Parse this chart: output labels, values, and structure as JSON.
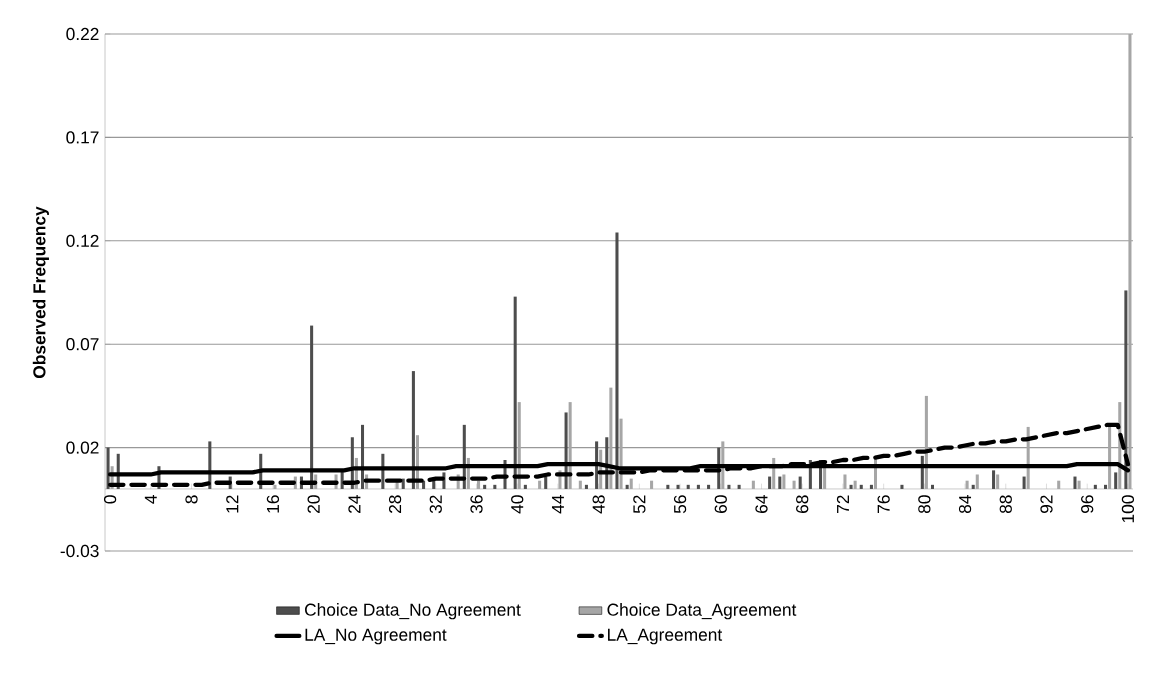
{
  "chart_data": {
    "type": "bar",
    "ylabel": "Observed Frequency",
    "categories": [
      "0",
      null,
      null,
      null,
      "4",
      null,
      null,
      null,
      "8",
      null,
      null,
      null,
      "12",
      null,
      null,
      null,
      "16",
      null,
      null,
      null,
      "20",
      null,
      null,
      null,
      "24",
      null,
      null,
      null,
      "28",
      null,
      null,
      null,
      "32",
      null,
      null,
      null,
      "36",
      null,
      null,
      null,
      "40",
      null,
      null,
      null,
      "44",
      null,
      null,
      null,
      "48",
      null,
      null,
      null,
      "52",
      null,
      null,
      null,
      "56",
      null,
      null,
      null,
      "60",
      null,
      null,
      null,
      "64",
      null,
      null,
      null,
      "68",
      null,
      null,
      null,
      "72",
      null,
      null,
      null,
      "76",
      null,
      null,
      null,
      "80",
      null,
      null,
      null,
      "84",
      null,
      null,
      null,
      "88",
      null,
      null,
      null,
      "92",
      null,
      null,
      null,
      "96",
      null,
      null,
      null,
      "100"
    ],
    "series": [
      {
        "name": "Choice Data_No Agreement",
        "color": "#4d4d4d",
        "values": [
          0.02,
          0.017,
          0,
          0,
          0,
          0.011,
          0,
          0,
          0,
          0,
          0.023,
          0,
          0.006,
          0,
          0,
          0.017,
          0,
          0,
          0,
          0.006,
          0.079,
          0,
          0,
          0.009,
          0.025,
          0.031,
          0,
          0.017,
          0,
          0.005,
          0.057,
          0.004,
          0.004,
          0.008,
          0,
          0.031,
          0,
          0.002,
          0.002,
          0.014,
          0.093,
          0.002,
          0,
          0.006,
          0,
          0.037,
          0,
          0.002,
          0.023,
          0.025,
          0.124,
          0.002,
          0,
          0,
          0,
          0.002,
          0.002,
          0.002,
          0.002,
          0.002,
          0.02,
          0.002,
          0.002,
          0,
          0,
          0.006,
          0.006,
          0,
          0.006,
          0.014,
          0.014,
          0,
          0,
          0.002,
          0.002,
          0.002,
          0,
          0,
          0.002,
          0,
          0.016,
          0.002,
          0,
          0,
          0,
          0.002,
          0,
          0.009,
          0,
          0,
          0.006,
          0,
          0,
          0,
          0,
          0.006,
          0,
          0.002,
          0.002,
          0.008,
          0.096
        ]
      },
      {
        "name": "Choice Data_Agreement",
        "color": "#a6a6a6",
        "values": [
          0.011,
          0,
          null,
          0,
          0,
          0,
          0,
          0,
          0,
          0,
          0,
          0,
          0,
          0,
          0,
          0,
          0.002,
          0,
          0.006,
          0,
          0.007,
          0,
          0.007,
          0,
          0.015,
          0.007,
          0,
          0,
          0.004,
          0,
          0.026,
          0,
          0,
          0,
          0.007,
          0.015,
          0.004,
          0,
          0,
          0,
          0.042,
          0,
          0.004,
          0,
          0.009,
          0.042,
          0.004,
          0,
          0.019,
          0.049,
          0.034,
          0.005,
          0,
          0.004,
          0,
          0,
          0,
          0,
          0,
          0,
          0.023,
          0,
          0,
          0.004,
          0,
          0.015,
          0.007,
          0.004,
          0,
          0,
          0.011,
          0,
          0.007,
          0.004,
          0,
          0.015,
          0,
          0,
          0,
          0,
          0.045,
          0,
          0,
          0,
          0.004,
          0.007,
          0,
          0.007,
          0,
          0,
          0.03,
          0,
          0,
          0.004,
          0,
          0.004,
          0,
          0,
          0.03,
          0.042,
          0.22
        ]
      },
      {
        "name": "LA_No Agreement",
        "type": "line",
        "line_style": "solid",
        "color": "#000000",
        "values": [
          0.007,
          0.007,
          0.007,
          0.007,
          0.007,
          0.008,
          0.008,
          0.008,
          0.008,
          0.008,
          0.008,
          0.008,
          0.008,
          0.008,
          0.008,
          0.009,
          0.009,
          0.009,
          0.009,
          0.009,
          0.009,
          0.009,
          0.009,
          0.009,
          0.01,
          0.01,
          0.01,
          0.01,
          0.01,
          0.01,
          0.01,
          0.01,
          0.01,
          0.01,
          0.011,
          0.011,
          0.011,
          0.011,
          0.011,
          0.011,
          0.011,
          0.011,
          0.011,
          0.012,
          0.012,
          0.012,
          0.012,
          0.012,
          0.012,
          0.011,
          0.01,
          0.01,
          0.01,
          0.01,
          0.01,
          0.01,
          0.01,
          0.01,
          0.011,
          0.011,
          0.011,
          0.011,
          0.011,
          0.011,
          0.011,
          0.011,
          0.011,
          0.011,
          0.011,
          0.011,
          0.011,
          0.011,
          0.011,
          0.011,
          0.011,
          0.011,
          0.011,
          0.011,
          0.011,
          0.011,
          0.011,
          0.011,
          0.011,
          0.011,
          0.011,
          0.011,
          0.011,
          0.011,
          0.011,
          0.011,
          0.011,
          0.011,
          0.011,
          0.011,
          0.011,
          0.012,
          0.012,
          0.012,
          0.012,
          0.012,
          0.009
        ]
      },
      {
        "name": "LA_Agreement",
        "type": "line",
        "line_style": "dashed",
        "color": "#000000",
        "values": [
          0.002,
          0.002,
          0.002,
          0.002,
          0.002,
          0.002,
          0.002,
          0.002,
          0.002,
          0.002,
          0.003,
          0.003,
          0.003,
          0.003,
          0.003,
          0.003,
          0.003,
          0.003,
          0.003,
          0.003,
          0.003,
          0.003,
          0.003,
          0.003,
          0.003,
          0.004,
          0.004,
          0.004,
          0.004,
          0.004,
          0.004,
          0.004,
          0.005,
          0.005,
          0.005,
          0.005,
          0.005,
          0.005,
          0.006,
          0.006,
          0.006,
          0.006,
          0.006,
          0.007,
          0.007,
          0.007,
          0.007,
          0.007,
          0.008,
          0.008,
          0.008,
          0.008,
          0.008,
          0.009,
          0.009,
          0.009,
          0.009,
          0.009,
          0.009,
          0.009,
          0.009,
          0.01,
          0.01,
          0.01,
          0.011,
          0.011,
          0.011,
          0.012,
          0.012,
          0.012,
          0.013,
          0.013,
          0.014,
          0.014,
          0.015,
          0.015,
          0.016,
          0.016,
          0.017,
          0.018,
          0.018,
          0.019,
          0.02,
          0.02,
          0.021,
          0.022,
          0.022,
          0.023,
          0.023,
          0.024,
          0.024,
          0.025,
          0.026,
          0.027,
          0.027,
          0.028,
          0.029,
          0.03,
          0.031,
          0.031,
          0.012
        ]
      }
    ],
    "ylim": [
      -0.03,
      0.22
    ],
    "yticks": [
      -0.03,
      0.02,
      0.07,
      0.12,
      0.17,
      0.22
    ],
    "grid": "y",
    "legend": "bottom"
  }
}
